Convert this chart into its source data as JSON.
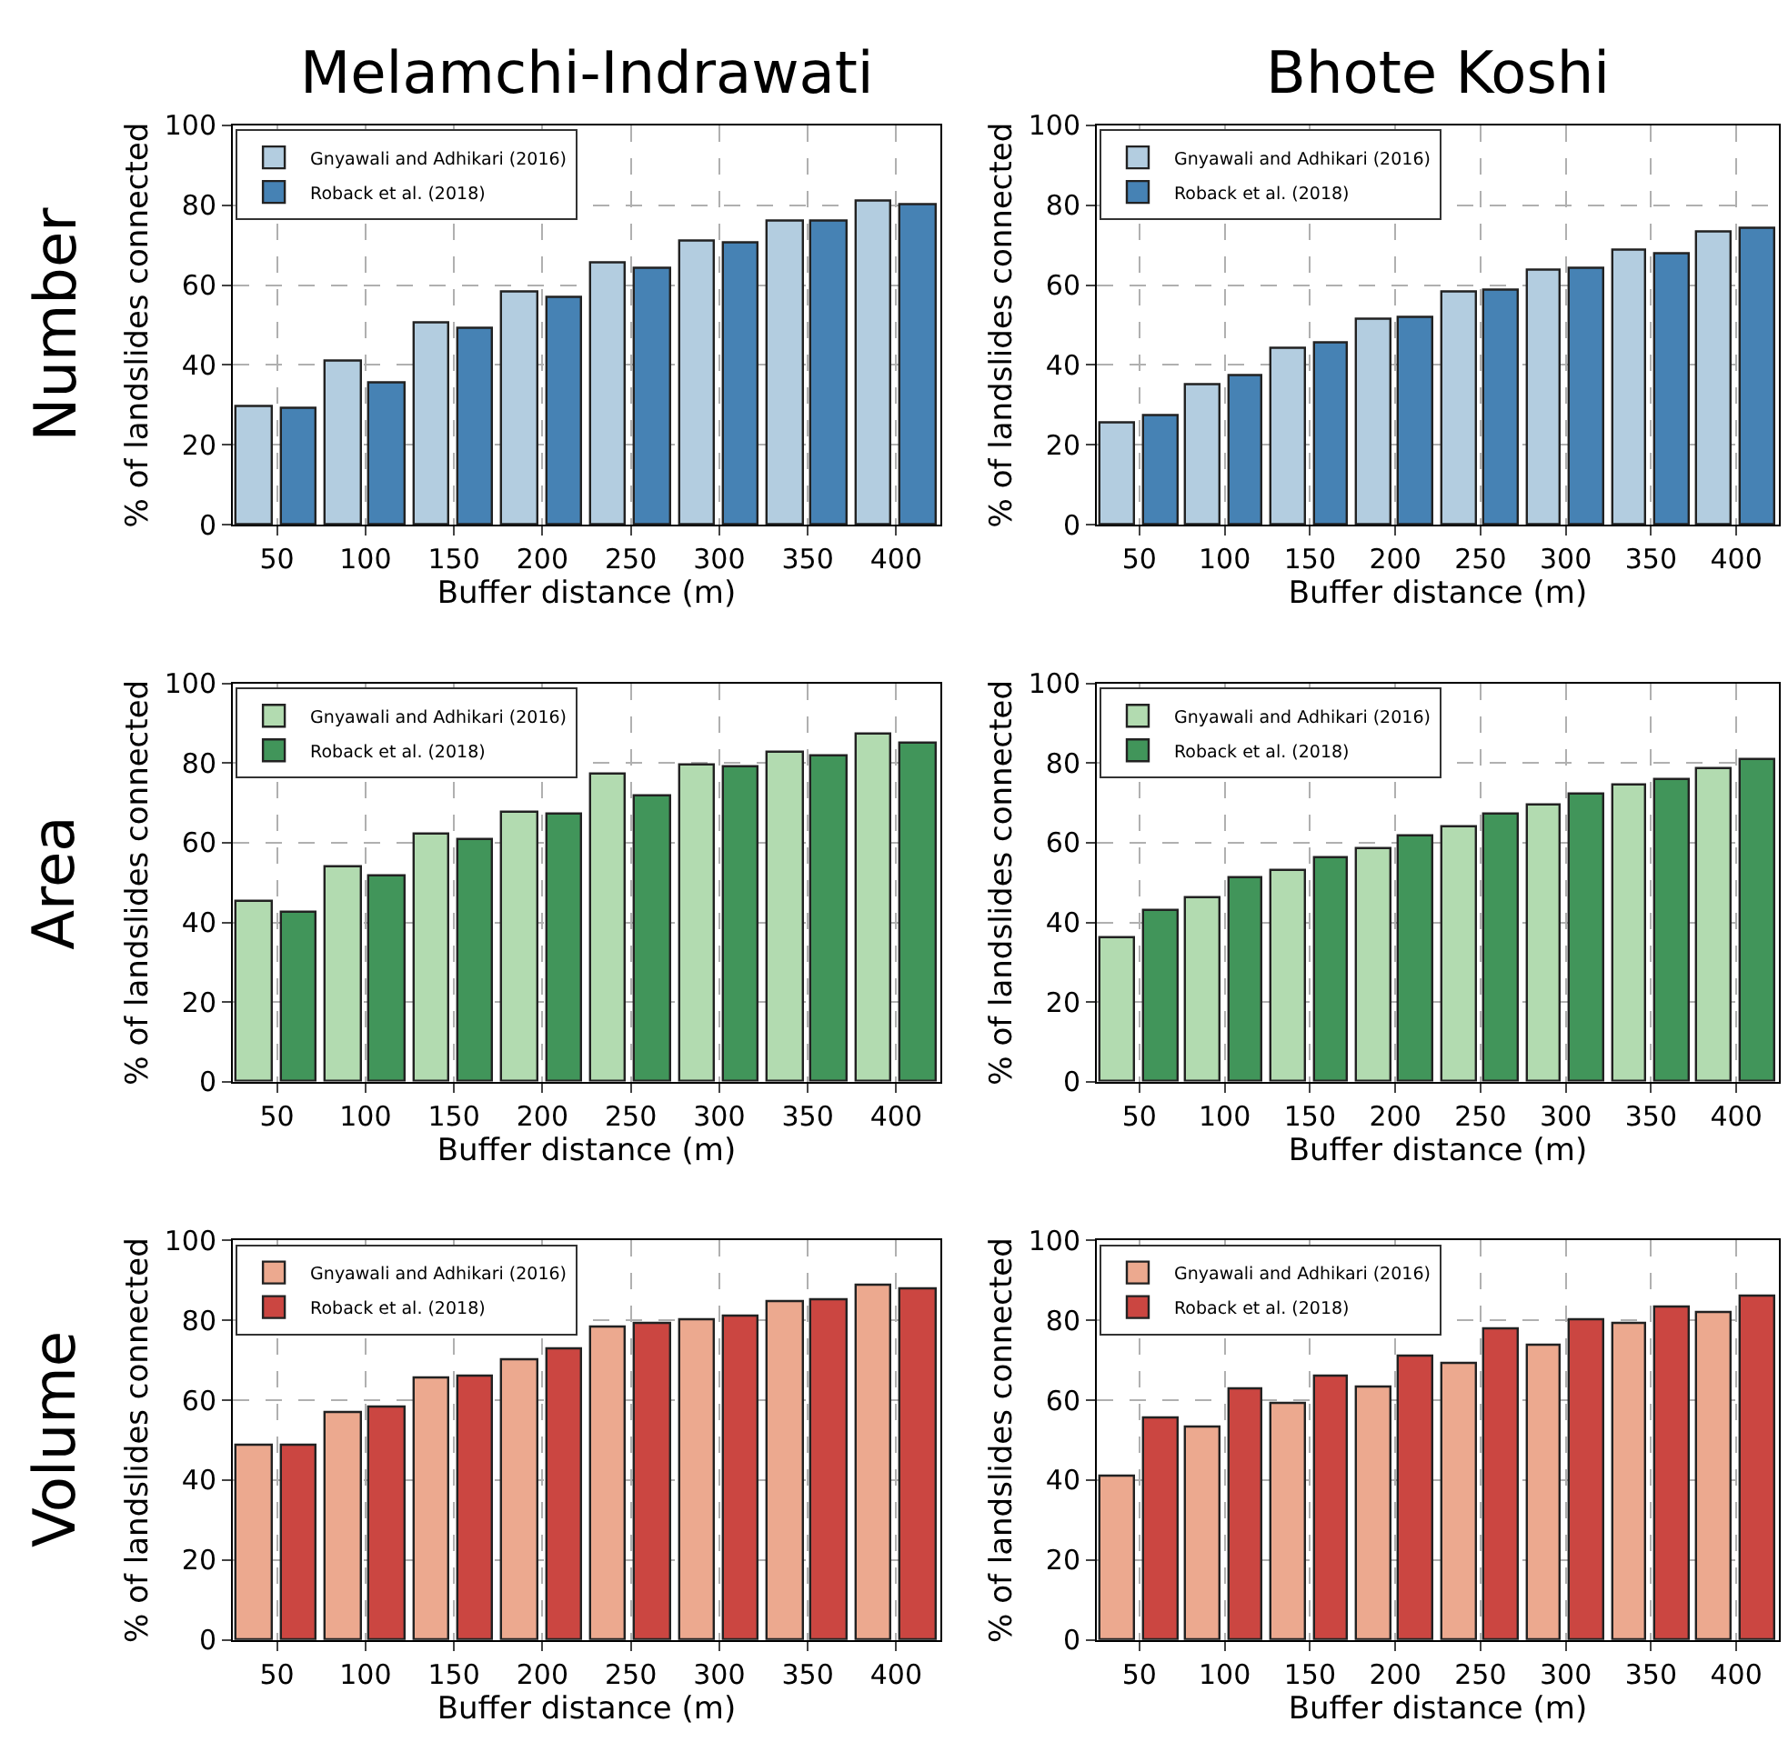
{
  "chart_data": [
    {
      "type": "bar",
      "title": "Melamchi-Indrawati",
      "annotations": [
        "Number"
      ],
      "xlabel": "Buffer distance (m)",
      "ylabel": "% of landslides connected",
      "categories": [
        "50",
        "100",
        "150",
        "200",
        "250",
        "300",
        "350",
        "400"
      ],
      "series": [
        {
          "name": "Gnyawali and Adhikari (2016)",
          "color": "#b3cde0",
          "values": [
            29.5,
            41,
            50.5,
            58,
            65.5,
            71,
            76,
            81
          ]
        },
        {
          "name": "Roback et al. (2018)",
          "color": "#4682b4",
          "values": [
            29,
            35.5,
            49,
            57,
            64,
            70.5,
            76,
            80
          ]
        }
      ],
      "ylim": [
        0,
        100
      ],
      "yticks": [
        0,
        20,
        40,
        60,
        80,
        100
      ],
      "grid": true,
      "legend": "top left"
    },
    {
      "type": "bar",
      "title": "Bhote Koshi",
      "xlabel": "Buffer distance (m)",
      "ylabel": "% of landslides connected",
      "categories": [
        "50",
        "100",
        "150",
        "200",
        "250",
        "300",
        "350",
        "400"
      ],
      "series": [
        {
          "name": "Gnyawali and Adhikari (2016)",
          "color": "#b3cde0",
          "values": [
            25.5,
            35,
            44,
            51.5,
            58,
            63.5,
            68.5,
            73
          ]
        },
        {
          "name": "Roback et al. (2018)",
          "color": "#4682b4",
          "values": [
            27,
            37,
            45.5,
            52,
            58.5,
            64,
            67.5,
            74
          ]
        }
      ],
      "ylim": [
        0,
        100
      ],
      "yticks": [
        0,
        20,
        40,
        60,
        80,
        100
      ],
      "grid": true,
      "legend": "top left"
    },
    {
      "type": "bar",
      "annotations": [
        "Area"
      ],
      "xlabel": "Buffer distance (m)",
      "ylabel": "% of landslides connected",
      "categories": [
        "50",
        "100",
        "150",
        "200",
        "250",
        "300",
        "350",
        "400"
      ],
      "series": [
        {
          "name": "Gnyawali and Adhikari (2016)",
          "color": "#b2dbb0",
          "values": [
            45,
            54,
            62,
            67.5,
            77,
            79.5,
            82.5,
            87
          ]
        },
        {
          "name": "Roback et al. (2018)",
          "color": "#41955a",
          "values": [
            42.5,
            51.5,
            60.5,
            67,
            71.5,
            79,
            81.5,
            85
          ]
        }
      ],
      "ylim": [
        0,
        100
      ],
      "yticks": [
        0,
        20,
        40,
        60,
        80,
        100
      ],
      "grid": true,
      "legend": "top left"
    },
    {
      "type": "bar",
      "xlabel": "Buffer distance (m)",
      "ylabel": "% of landslides connected",
      "categories": [
        "50",
        "100",
        "150",
        "200",
        "250",
        "300",
        "350",
        "400"
      ],
      "series": [
        {
          "name": "Gnyawali and Adhikari (2016)",
          "color": "#b2dbb0",
          "values": [
            36,
            46,
            53,
            58.5,
            64,
            69.5,
            74.5,
            78.5
          ]
        },
        {
          "name": "Roback et al. (2018)",
          "color": "#41955a",
          "values": [
            43,
            51,
            56,
            61.5,
            67,
            72,
            76,
            81
          ]
        }
      ],
      "ylim": [
        0,
        100
      ],
      "yticks": [
        0,
        20,
        40,
        60,
        80,
        100
      ],
      "grid": true,
      "legend": "top left"
    },
    {
      "type": "bar",
      "annotations": [
        "Volume"
      ],
      "xlabel": "Buffer distance (m)",
      "ylabel": "% of landslides connected",
      "categories": [
        "50",
        "100",
        "150",
        "200",
        "250",
        "300",
        "350",
        "400"
      ],
      "series": [
        {
          "name": "Gnyawali and Adhikari (2016)",
          "color": "#eca98f",
          "values": [
            48.5,
            57,
            65.5,
            70,
            78,
            80,
            84.5,
            88.5
          ]
        },
        {
          "name": "Roback et al. (2018)",
          "color": "#cb4641",
          "values": [
            48.5,
            58,
            66,
            72.5,
            79,
            81,
            85,
            87.5
          ]
        }
      ],
      "ylim": [
        0,
        100
      ],
      "yticks": [
        0,
        20,
        40,
        60,
        80,
        100
      ],
      "grid": true,
      "legend": "top left"
    },
    {
      "type": "bar",
      "xlabel": "Buffer distance (m)",
      "ylabel": "% of landslides connected",
      "categories": [
        "50",
        "100",
        "150",
        "200",
        "250",
        "300",
        "350",
        "400"
      ],
      "series": [
        {
          "name": "Gnyawali and Adhikari (2016)",
          "color": "#eca98f",
          "values": [
            41,
            53,
            59,
            63,
            69,
            73.5,
            79,
            82
          ]
        },
        {
          "name": "Roback et al. (2018)",
          "color": "#cb4641",
          "values": [
            55.5,
            62.5,
            66,
            71,
            77.5,
            80,
            83,
            86
          ]
        }
      ],
      "ylim": [
        0,
        100
      ],
      "yticks": [
        0,
        20,
        40,
        60,
        80,
        100
      ],
      "grid": true,
      "legend": "top left"
    }
  ]
}
